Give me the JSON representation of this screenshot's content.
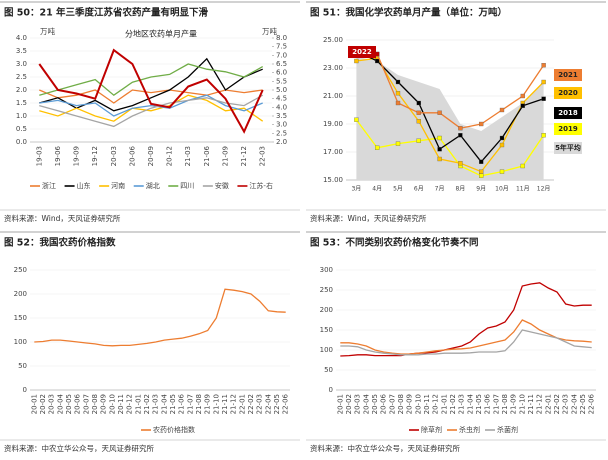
{
  "chart_data": [
    {
      "type": "line",
      "title": "图 50：21 年三季度江苏省农药产量有明显下滑",
      "source": "资料来源：Wind，天风证券研究所",
      "annotations": [
        "万吨",
        "万吨",
        "分地区农药单月产量"
      ],
      "categories": [
        "19-03",
        "19-06",
        "19-09",
        "19-12",
        "20-03",
        "20-06",
        "20-09",
        "20-12",
        "21-03",
        "21-06",
        "21-09",
        "21-12",
        "22-03"
      ],
      "ylim": [
        0,
        4
      ],
      "yticks": [
        {
          "value": 0,
          "label": "0.0"
        },
        0.5,
        {
          "value": 1,
          "label": "1.0"
        },
        1.5,
        {
          "value": 2,
          "label": "2.0"
        },
        2.5,
        {
          "value": 3,
          "label": "3.0"
        },
        3.5,
        {
          "value": 4,
          "label": "4.0"
        }
      ],
      "y2lim": [
        2,
        8
      ],
      "y2ticks": [
        {
          "value": 2,
          "label": "2.0"
        },
        2.5,
        {
          "value": 3,
          "label": "3.0"
        },
        3.5,
        {
          "value": 4,
          "label": "4.0"
        },
        4.5,
        {
          "value": 5,
          "label": "5.0"
        },
        5.5,
        {
          "value": 6,
          "label": "6.0"
        },
        6.5,
        {
          "value": 7,
          "label": "7.0"
        },
        7.5,
        {
          "value": 8,
          "label": "8.0"
        }
      ],
      "series": [
        {
          "name": "浙江",
          "color": "#ed7d31",
          "values": [
            2.0,
            1.7,
            1.8,
            2.0,
            1.5,
            2.0,
            1.9,
            2.0,
            1.9,
            1.8,
            2.0,
            1.9,
            2.0
          ]
        },
        {
          "name": "山东",
          "color": "#000000",
          "values": [
            1.5,
            1.7,
            1.3,
            1.6,
            1.2,
            1.4,
            1.7,
            2.0,
            2.5,
            3.2,
            2.0,
            2.5,
            2.8
          ]
        },
        {
          "name": "河南",
          "color": "#ffc000",
          "values": [
            1.2,
            1.0,
            1.3,
            1.0,
            0.8,
            1.3,
            1.2,
            1.4,
            1.8,
            1.6,
            1.2,
            1.3,
            0.8
          ]
        },
        {
          "name": "湖北",
          "color": "#5b9bd5",
          "values": [
            1.5,
            1.6,
            1.4,
            1.5,
            1.0,
            1.3,
            1.4,
            1.3,
            1.6,
            1.8,
            1.4,
            1.2,
            1.5
          ]
        },
        {
          "name": "四川",
          "color": "#70ad47",
          "values": [
            1.8,
            2.0,
            2.2,
            2.4,
            1.8,
            2.3,
            2.5,
            2.6,
            3.0,
            2.8,
            2.7,
            2.5,
            2.9
          ]
        },
        {
          "name": "安徽",
          "color": "#a5a5a5",
          "values": [
            1.4,
            1.2,
            1.0,
            0.8,
            0.6,
            1.0,
            1.3,
            1.5,
            1.6,
            1.7,
            1.5,
            1.4,
            1.8
          ]
        },
        {
          "name": "江苏-右",
          "color": "#c00000",
          "axis": "y2",
          "values": [
            6.5,
            5.0,
            4.8,
            4.5,
            7.3,
            6.5,
            4.2,
            4.0,
            5.2,
            5.6,
            4.5,
            2.6,
            5.0
          ]
        }
      ]
    },
    {
      "type": "line",
      "title": "图 51：我国化学农药单月产量（单位：万吨）",
      "source": "资料来源：Wind，天风证券研究所",
      "categories": [
        "3月",
        "4月",
        "5月",
        "6月",
        "7月",
        "8月",
        "9月",
        "10月",
        "11月",
        "12月"
      ],
      "ylim": [
        15,
        25
      ],
      "yticks": [
        {
          "value": 15,
          "label": "15.00"
        },
        {
          "value": 17,
          "label": "17.00"
        },
        {
          "value": 19,
          "label": "19.00"
        },
        {
          "value": 21,
          "label": "21.00"
        },
        {
          "value": 23,
          "label": "23.00"
        },
        {
          "value": 25,
          "label": "25.00"
        }
      ],
      "series": [
        {
          "name": "5年平均",
          "color": "#d9d9d9",
          "kind": "area",
          "values": [
            23.8,
            23.5,
            22.5,
            22.0,
            21.5,
            19.0,
            18.5,
            19.5,
            20.5,
            22.0
          ]
        },
        {
          "name": "2019",
          "color": "#ffff00",
          "values": [
            19.3,
            17.3,
            17.6,
            17.8,
            18.0,
            16.0,
            15.3,
            15.6,
            16.0,
            18.2
          ]
        },
        {
          "name": "2020",
          "color": "#ffc000",
          "values": [
            23.5,
            23.7,
            21.2,
            19.2,
            16.5,
            16.2,
            15.6,
            17.5,
            20.5,
            22.0
          ]
        },
        {
          "name": "2018",
          "color": "#000000",
          "values": [
            24.2,
            23.5,
            22.0,
            20.5,
            17.2,
            18.2,
            16.3,
            18.0,
            20.3,
            20.8
          ]
        },
        {
          "name": "2021",
          "color": "#ed7d31",
          "values": [
            24.0,
            24.0,
            20.5,
            19.8,
            19.8,
            18.7,
            19.0,
            20.0,
            21.0,
            23.2
          ]
        },
        {
          "name": "2022",
          "color": "#c00000",
          "values": [
            24.4,
            24.0,
            null,
            null,
            null,
            null,
            null,
            null,
            null,
            null
          ]
        }
      ]
    },
    {
      "type": "line",
      "title": "图 52：我国农药价格指数",
      "source": "资料来源：中农立华公众号，天风证券研究所",
      "categories": [
        "20-01",
        "20-02",
        "20-03",
        "20-04",
        "20-05",
        "20-06",
        "20-07",
        "20-08",
        "20-09",
        "20-10",
        "20-11",
        "20-12",
        "21-01",
        "21-02",
        "21-03",
        "21-04",
        "21-05",
        "21-06",
        "21-07",
        "21-08",
        "21-09",
        "21-10",
        "21-11",
        "21-12",
        "22-01",
        "22-02",
        "22-03",
        "22-04",
        "22-05",
        "22-06"
      ],
      "ylim": [
        0,
        250
      ],
      "yticks": [
        0,
        50,
        100,
        150,
        200,
        250
      ],
      "series": [
        {
          "name": "农药价格指数",
          "color": "#ed7d31",
          "values": [
            100,
            101,
            104,
            104,
            102,
            100,
            98,
            96,
            93,
            92,
            93,
            93,
            95,
            97,
            100,
            104,
            106,
            108,
            112,
            117,
            124,
            150,
            210,
            208,
            205,
            200,
            185,
            165,
            163,
            162
          ]
        }
      ]
    },
    {
      "type": "line",
      "title": "图 53：不同类别农药价格变化节奏不同",
      "source": "资料来源：中农立华公众号，天风证券研究所",
      "categories": [
        "20-01",
        "20-02",
        "20-03",
        "20-04",
        "20-05",
        "20-06",
        "20-07",
        "20-08",
        "20-09",
        "20-10",
        "20-11",
        "20-12",
        "21-01",
        "21-02",
        "21-03",
        "21-04",
        "21-05",
        "21-06",
        "21-07",
        "21-08",
        "21-09",
        "21-10",
        "21-11",
        "21-12",
        "22-01",
        "22-02",
        "22-03",
        "22-04",
        "22-05",
        "22-06"
      ],
      "ylim": [
        0,
        300
      ],
      "yticks": [
        0,
        50,
        100,
        150,
        200,
        250,
        300
      ],
      "series": [
        {
          "name": "除草剂",
          "color": "#c00000",
          "values": [
            85,
            86,
            88,
            88,
            86,
            86,
            86,
            86,
            90,
            92,
            93,
            95,
            100,
            105,
            110,
            120,
            140,
            155,
            160,
            170,
            200,
            260,
            265,
            268,
            255,
            245,
            215,
            210,
            212,
            212
          ]
        },
        {
          "name": "杀虫剂",
          "color": "#ed7d31",
          "values": [
            118,
            118,
            115,
            110,
            100,
            95,
            92,
            90,
            90,
            92,
            95,
            98,
            100,
            102,
            103,
            105,
            110,
            115,
            120,
            125,
            145,
            175,
            165,
            150,
            140,
            130,
            125,
            123,
            122,
            120
          ]
        },
        {
          "name": "杀菌剂",
          "color": "#a5a5a5",
          "values": [
            110,
            110,
            108,
            100,
            95,
            92,
            90,
            88,
            88,
            88,
            90,
            90,
            92,
            92,
            92,
            93,
            95,
            95,
            95,
            98,
            120,
            150,
            145,
            140,
            135,
            130,
            120,
            110,
            108,
            106
          ]
        }
      ]
    }
  ]
}
